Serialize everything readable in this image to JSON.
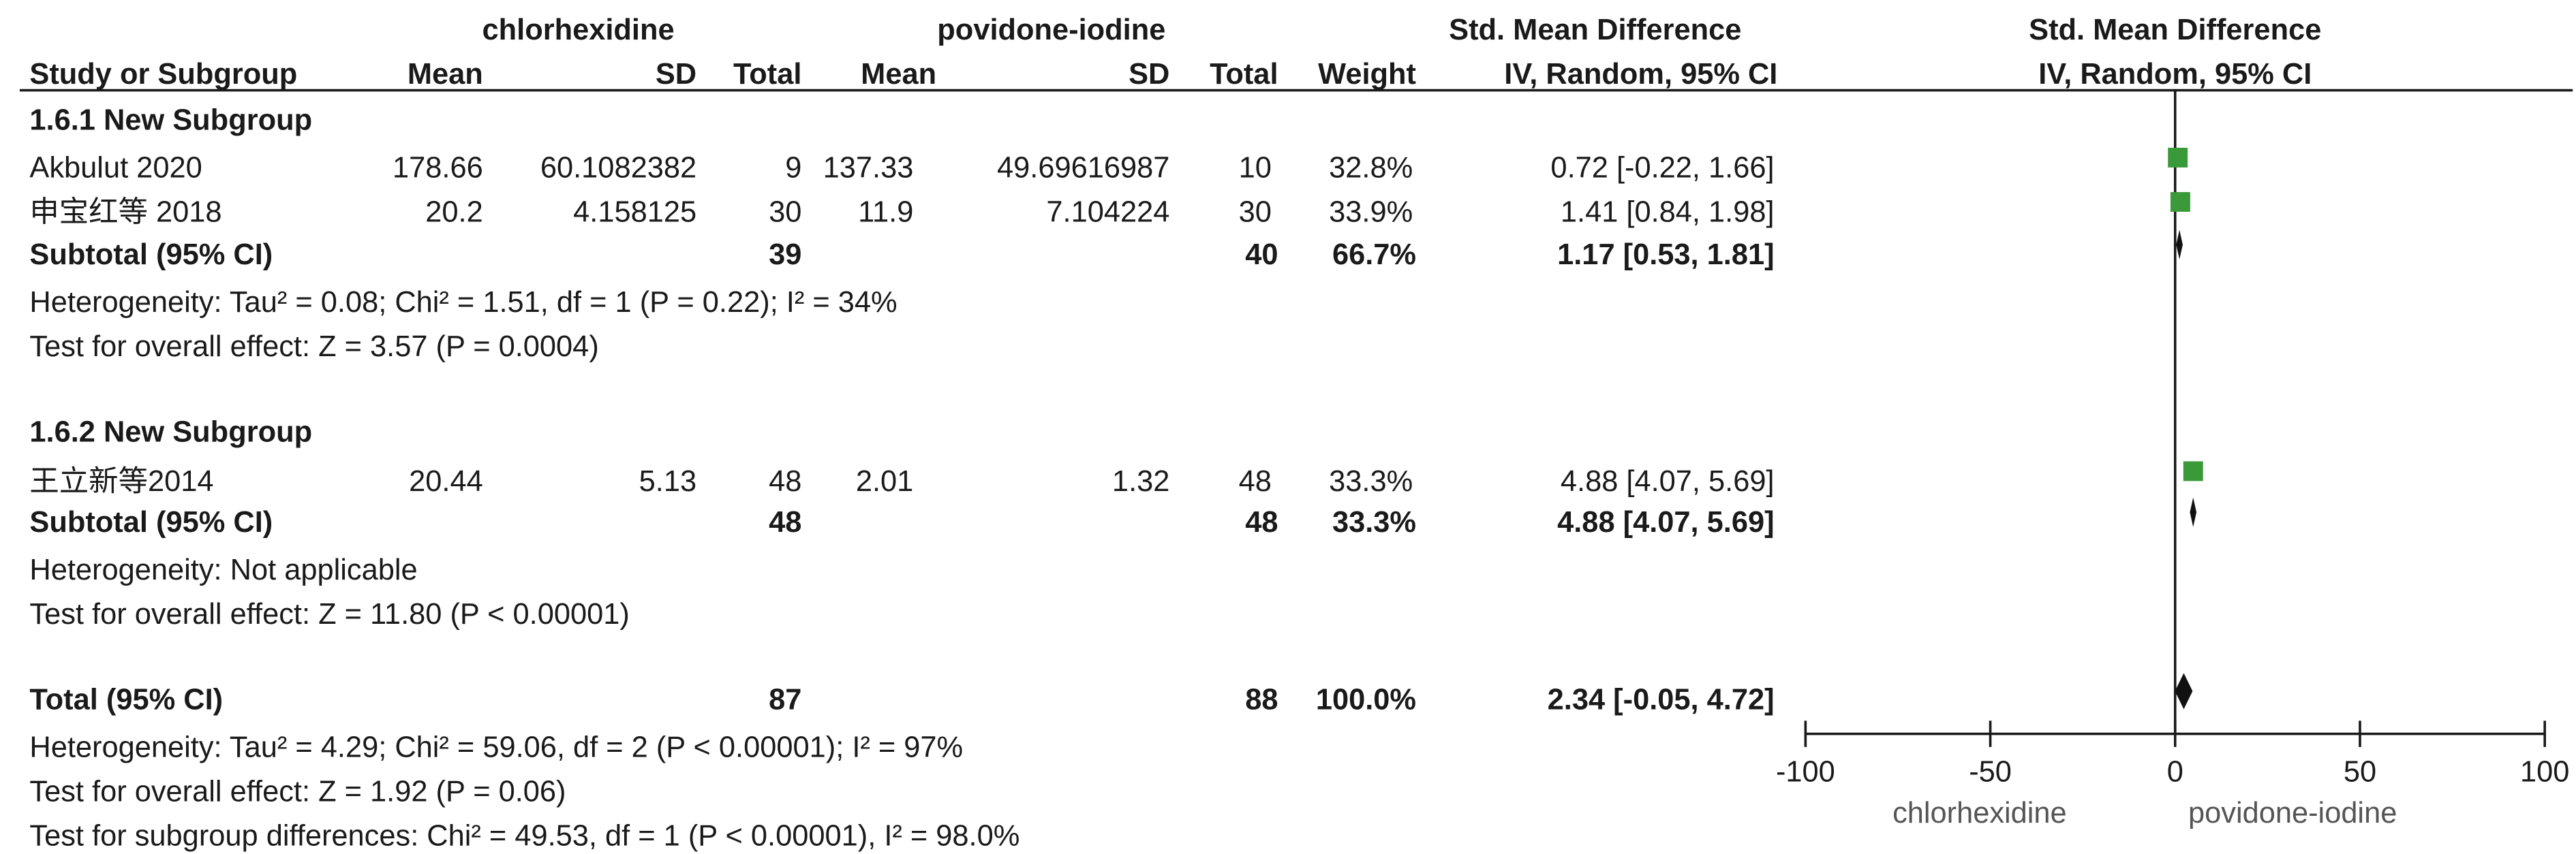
{
  "header": {
    "group1": "chlorhexidine",
    "group2": "povidone-iodine",
    "effect": "Std. Mean Difference",
    "effect_sub": "IV, Random, 95% CI",
    "plot_title": "Std. Mean Difference",
    "plot_sub": "IV, Random, 95% CI",
    "columns": {
      "study": "Study or Subgroup",
      "mean1": "Mean",
      "sd1": "SD",
      "total1": "Total",
      "mean2": "Mean",
      "sd2": "SD",
      "total2": "Total",
      "weight": "Weight"
    }
  },
  "rows": [
    {
      "kind": "subgroup",
      "study": "1.6.1 New Subgroup"
    },
    {
      "kind": "study",
      "study": "Akbulut 2020",
      "mean1": "178.66",
      "sd1": "60.1082382",
      "total1": "9",
      "mean2": "137.33",
      "sd2": "49.69616987",
      "total2": "10",
      "weight": "32.8%",
      "ci": "0.72 [-0.22, 1.66]"
    },
    {
      "kind": "study",
      "study": "申宝红等 2018",
      "mean1": "20.2",
      "sd1": "4.158125",
      "total1": "30",
      "mean2": "11.9",
      "sd2": "7.104224",
      "total2": "30",
      "weight": "33.9%",
      "ci": "1.41 [0.84, 1.98]"
    },
    {
      "kind": "subtotal",
      "study": "Subtotal (95% CI)",
      "total1": "39",
      "total2": "40",
      "weight": "66.7%",
      "ci": "1.17 [0.53, 1.81]"
    },
    {
      "kind": "note",
      "study": "Heterogeneity: Tau² = 0.08; Chi² = 1.51, df = 1 (P = 0.22); I² = 34%"
    },
    {
      "kind": "note",
      "study": "Test for overall effect: Z = 3.57 (P = 0.0004)"
    },
    {
      "kind": "subgroup",
      "study": "1.6.2 New Subgroup"
    },
    {
      "kind": "study",
      "study": "王立新等2014",
      "mean1": "20.44",
      "sd1": "5.13",
      "total1": "48",
      "mean2": "2.01",
      "sd2": "1.32",
      "total2": "48",
      "weight": "33.3%",
      "ci": "4.88 [4.07, 5.69]"
    },
    {
      "kind": "subtotal",
      "study": "Subtotal (95% CI)",
      "total1": "48",
      "total2": "48",
      "weight": "33.3%",
      "ci": "4.88 [4.07, 5.69]"
    },
    {
      "kind": "note",
      "study": "Heterogeneity: Not applicable"
    },
    {
      "kind": "note",
      "study": "Test for overall effect: Z = 11.80 (P < 0.00001)"
    },
    {
      "kind": "total",
      "study": "Total (95% CI)",
      "total1": "87",
      "total2": "88",
      "weight": "100.0%",
      "ci": "2.34 [-0.05, 4.72]"
    },
    {
      "kind": "note",
      "study": "Heterogeneity: Tau² = 4.29; Chi² = 59.06, df = 2 (P < 0.00001); I² = 97%"
    },
    {
      "kind": "note",
      "study": "Test for overall effect: Z = 1.92 (P = 0.06)"
    },
    {
      "kind": "note",
      "study": "Test for subgroup differences: Chi² = 49.53, df = 1 (P < 0.00001), I² = 98.0%"
    }
  ],
  "colors": {
    "study_marker": "#3a9a3a",
    "diamond": "#111111",
    "text": "#1a1a1a"
  },
  "chart_data": {
    "type": "forest",
    "x_ticks": [
      "-100",
      "-50",
      "0",
      "50",
      "100"
    ],
    "xlim": [
      -100,
      100
    ],
    "favours_left": "chlorhexidine",
    "favours_right": "povidone-iodine",
    "studies": [
      {
        "name": "Akbulut 2020",
        "estimate": 0.72,
        "lower": -0.22,
        "upper": 1.66,
        "weight": 32.8
      },
      {
        "name": "申宝红等 2018",
        "estimate": 1.41,
        "lower": 0.84,
        "upper": 1.98,
        "weight": 33.9
      },
      {
        "name": "王立新等2014",
        "estimate": 4.88,
        "lower": 4.07,
        "upper": 5.69,
        "weight": 33.3
      }
    ],
    "pooled": [
      {
        "name": "Subtotal (95% CI)",
        "estimate": 1.17,
        "lower": 0.53,
        "upper": 1.81
      },
      {
        "name": "Subtotal (95% CI)",
        "estimate": 4.88,
        "lower": 4.07,
        "upper": 5.69
      },
      {
        "name": "Total (95% CI)",
        "estimate": 2.34,
        "lower": -0.05,
        "upper": 4.72
      }
    ]
  }
}
